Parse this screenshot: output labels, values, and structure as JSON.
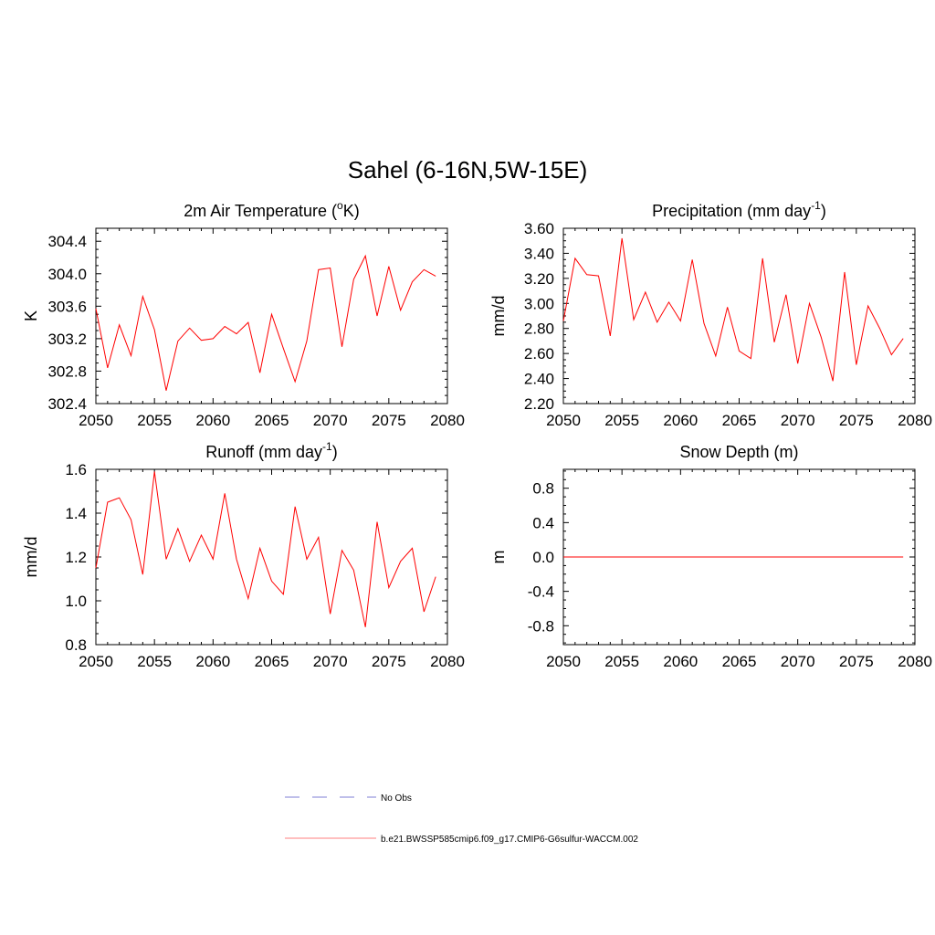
{
  "title": "Sahel (6-16N,5W-15E)",
  "colors": {
    "model": "#ff0000",
    "obs": "#9999dd",
    "legend_model": "#ff9999"
  },
  "legend": [
    {
      "label": "No Obs",
      "style": "dashed",
      "color": "#9999dd"
    },
    {
      "label": "b.e21.BWSSP585cmip6.f09_g17.CMIP6-G6sulfur-WACCM.002",
      "style": "solid",
      "color": "#ff9999"
    }
  ],
  "chart_data": [
    {
      "type": "line",
      "title": "2m Air Temperature (",
      "title_sup": "o",
      "title_tail": "K)",
      "ylabel": "K",
      "xlim": [
        2050,
        2080
      ],
      "xticks": [
        2050,
        2055,
        2060,
        2065,
        2070,
        2075,
        2080
      ],
      "ylim": [
        302.4,
        304.56
      ],
      "yticks": [
        302.4,
        302.8,
        303.2,
        303.6,
        304.0,
        304.4
      ],
      "ytick_labels": [
        "302.4",
        "302.8",
        "303.2",
        "303.6",
        "304.0",
        "304.4"
      ],
      "x": [
        2050,
        2051,
        2052,
        2053,
        2054,
        2055,
        2056,
        2057,
        2058,
        2059,
        2060,
        2061,
        2062,
        2063,
        2064,
        2065,
        2066,
        2067,
        2068,
        2069,
        2070,
        2071,
        2072,
        2073,
        2074,
        2075,
        2076,
        2077,
        2078,
        2079
      ],
      "series": [
        {
          "values": [
            303.57,
            302.84,
            303.37,
            302.99,
            303.72,
            303.31,
            302.56,
            303.17,
            303.33,
            303.18,
            303.2,
            303.35,
            303.26,
            303.4,
            302.78,
            303.5,
            303.08,
            302.67,
            303.17,
            304.05,
            304.07,
            303.1,
            303.93,
            304.22,
            303.48,
            304.09,
            303.55,
            303.9,
            304.05,
            303.97
          ]
        }
      ]
    },
    {
      "type": "line",
      "title": "Precipitation (mm day",
      "title_sup": "-1",
      "title_tail": ")",
      "ylabel": "mm/d",
      "xlim": [
        2050,
        2080
      ],
      "xticks": [
        2050,
        2055,
        2060,
        2065,
        2070,
        2075,
        2080
      ],
      "ylim": [
        2.2,
        3.6
      ],
      "yticks": [
        2.2,
        2.4,
        2.6,
        2.8,
        3.0,
        3.2,
        3.4,
        3.6
      ],
      "ytick_labels": [
        "2.20",
        "2.40",
        "2.60",
        "2.80",
        "3.00",
        "3.20",
        "3.40",
        "3.60"
      ],
      "x": [
        2050,
        2051,
        2052,
        2053,
        2054,
        2055,
        2056,
        2057,
        2058,
        2059,
        2060,
        2061,
        2062,
        2063,
        2064,
        2065,
        2066,
        2067,
        2068,
        2069,
        2070,
        2071,
        2072,
        2073,
        2074,
        2075,
        2076,
        2077,
        2078,
        2079
      ],
      "series": [
        {
          "values": [
            2.86,
            3.36,
            3.23,
            3.22,
            2.74,
            3.52,
            2.87,
            3.09,
            2.85,
            3.01,
            2.86,
            3.35,
            2.84,
            2.58,
            2.97,
            2.62,
            2.56,
            3.36,
            2.69,
            3.07,
            2.52,
            3.0,
            2.73,
            2.38,
            3.25,
            2.51,
            2.98,
            2.8,
            2.59,
            2.72
          ]
        }
      ]
    },
    {
      "type": "line",
      "title": "Runoff (mm day",
      "title_sup": "-1",
      "title_tail": ")",
      "ylabel": "mm/d",
      "xlim": [
        2050,
        2080
      ],
      "xticks": [
        2050,
        2055,
        2060,
        2065,
        2070,
        2075,
        2080
      ],
      "ylim": [
        0.8,
        1.6
      ],
      "yticks": [
        0.8,
        1.0,
        1.2,
        1.4,
        1.6
      ],
      "ytick_labels": [
        "0.8",
        "1.0",
        "1.2",
        "1.4",
        "1.6"
      ],
      "x": [
        2050,
        2051,
        2052,
        2053,
        2054,
        2055,
        2056,
        2057,
        2058,
        2059,
        2060,
        2061,
        2062,
        2063,
        2064,
        2065,
        2066,
        2067,
        2068,
        2069,
        2070,
        2071,
        2072,
        2073,
        2074,
        2075,
        2076,
        2077,
        2078,
        2079
      ],
      "series": [
        {
          "values": [
            1.15,
            1.45,
            1.47,
            1.37,
            1.12,
            1.59,
            1.19,
            1.33,
            1.18,
            1.3,
            1.19,
            1.49,
            1.19,
            1.01,
            1.24,
            1.09,
            1.03,
            1.43,
            1.19,
            1.29,
            0.94,
            1.23,
            1.14,
            0.88,
            1.36,
            1.06,
            1.18,
            1.24,
            0.95,
            1.11
          ]
        }
      ]
    },
    {
      "type": "line",
      "title": "Snow Depth (m)",
      "title_sup": "",
      "title_tail": "",
      "ylabel": "m",
      "xlim": [
        2050,
        2080
      ],
      "xticks": [
        2050,
        2055,
        2060,
        2065,
        2070,
        2075,
        2080
      ],
      "ylim": [
        -1.02,
        1.02
      ],
      "yticks": [
        -0.8,
        -0.4,
        0.0,
        0.4,
        0.8
      ],
      "ytick_labels": [
        "-0.8",
        "-0.4",
        "0.0",
        "0.4",
        "0.8"
      ],
      "x": [
        2050,
        2051,
        2052,
        2053,
        2054,
        2055,
        2056,
        2057,
        2058,
        2059,
        2060,
        2061,
        2062,
        2063,
        2064,
        2065,
        2066,
        2067,
        2068,
        2069,
        2070,
        2071,
        2072,
        2073,
        2074,
        2075,
        2076,
        2077,
        2078,
        2079
      ],
      "series": [
        {
          "values": [
            0,
            0,
            0,
            0,
            0,
            0,
            0,
            0,
            0,
            0,
            0,
            0,
            0,
            0,
            0,
            0,
            0,
            0,
            0,
            0,
            0,
            0,
            0,
            0,
            0,
            0,
            0,
            0,
            0,
            0
          ]
        }
      ]
    }
  ]
}
